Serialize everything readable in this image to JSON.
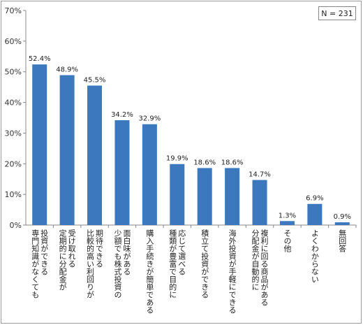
{
  "chart_data": {
    "type": "bar",
    "ylim": [
      0,
      70
    ],
    "yticks": [
      "0%",
      "10%",
      "20%",
      "30%",
      "40%",
      "50%",
      "60%",
      "70%"
    ],
    "note": "N = 231",
    "bar_color": "#3b78be",
    "categories": [
      [
        "投資ができる",
        "専門知識がなくても"
      ],
      [
        "受け取れる",
        "定期的に分配金が"
      ],
      [
        "期待できる",
        "比較的高い利回りが"
      ],
      [
        "面白味がある",
        "少額でも株式投資の"
      ],
      [
        "購入手続きが簡単である"
      ],
      [
        "応じて選べる",
        "種類が豊富で目的に"
      ],
      [
        "積立て投資ができる"
      ],
      [
        "海外投資が手軽にできる"
      ],
      [
        "複利に回る商品がある",
        "分配金が自動的に"
      ],
      [
        "その他"
      ],
      [
        "よくわからない"
      ],
      [
        "無回答"
      ]
    ],
    "values": [
      52.4,
      48.9,
      45.5,
      34.2,
      32.9,
      19.9,
      18.6,
      18.6,
      14.7,
      1.3,
      6.9,
      0.9
    ],
    "value_labels": [
      "52.4%",
      "48.9%",
      "45.5%",
      "34.2%",
      "32.9%",
      "19.9%",
      "18.6%",
      "18.6%",
      "14.7%",
      "1.3%",
      "6.9%",
      "0.9%"
    ]
  }
}
